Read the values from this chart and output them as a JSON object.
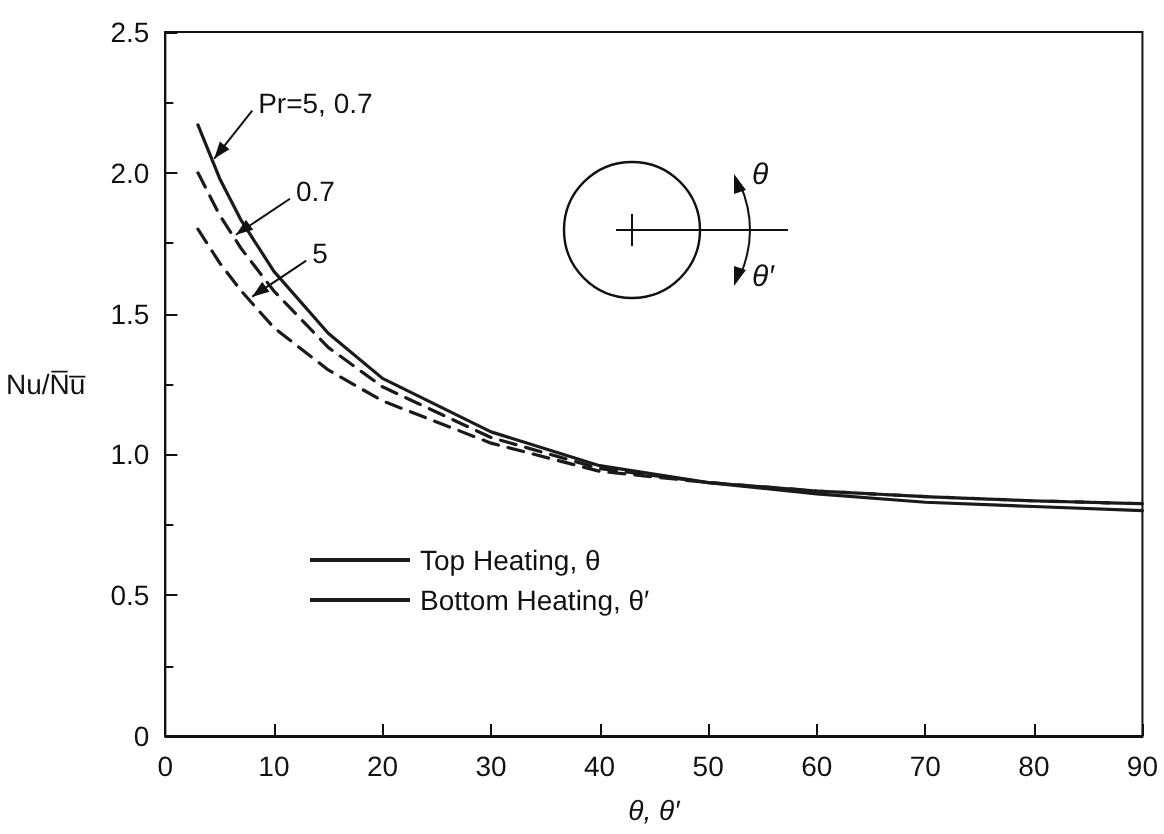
{
  "chart_data": {
    "type": "line",
    "xlabel": "θ, θ′",
    "ylabel": "Nu/N̅u̅",
    "xlim": [
      0,
      90
    ],
    "xticks": [
      0,
      10,
      20,
      30,
      40,
      50,
      60,
      70,
      80,
      90
    ],
    "ylim": [
      0,
      2.5
    ],
    "yticks": [
      0,
      0.5,
      {
        "value": 1,
        "label": "1.0"
      },
      1.5,
      {
        "value": 2,
        "label": "2.0"
      },
      2.5
    ],
    "grid": false,
    "legend": "bottom left",
    "marker": "none",
    "series": [
      {
        "name": "Top Heating, θ",
        "color": "#1a1a1a",
        "line_style": "solid",
        "x": [
          3,
          5,
          7,
          10,
          15,
          20,
          30,
          40,
          50,
          60,
          70,
          80,
          90
        ],
        "values": [
          2.17,
          1.98,
          1.83,
          1.65,
          1.43,
          1.27,
          1.08,
          0.96,
          0.9,
          0.86,
          0.83,
          0.815,
          0.8
        ]
      },
      {
        "name": "Bottom Heating, θ′",
        "color": "#1a1a1a",
        "line_style": "dashed",
        "x": [
          3,
          5,
          7,
          10,
          15,
          20,
          30,
          40,
          50,
          60,
          70,
          80,
          90
        ],
        "values": [
          2.0,
          1.85,
          1.73,
          1.58,
          1.38,
          1.24,
          1.06,
          0.95,
          0.9,
          0.87,
          0.85,
          0.835,
          0.825
        ]
      },
      {
        "color": "#1a1a1a",
        "line_style": "dashed",
        "x": [
          3,
          5,
          7,
          10,
          15,
          20,
          30,
          40,
          50,
          60,
          70,
          80,
          90
        ],
        "values": [
          1.8,
          1.68,
          1.58,
          1.45,
          1.3,
          1.19,
          1.04,
          0.94,
          0.9,
          0.87,
          0.85,
          0.835,
          0.825
        ]
      }
    ],
    "annotations": [
      {
        "text": "Pr=5, 0.7",
        "x": 4.5,
        "y": 2.05
      },
      {
        "text": "0.7",
        "x": 6.5,
        "y": 1.78
      },
      {
        "text": "5",
        "x": 8,
        "y": 1.56
      },
      "θ",
      "θ′"
    ]
  }
}
